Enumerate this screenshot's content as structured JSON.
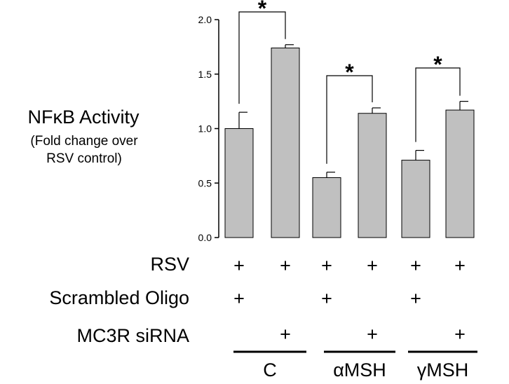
{
  "chart_data": {
    "type": "bar",
    "y_axis_title": "NFκB Activity",
    "y_axis_subtitle": "(Fold change over\nRSV control)",
    "ylim": [
      0,
      2.0
    ],
    "yticks": [
      "0.0",
      "0.5",
      "1.0",
      "1.5",
      "2.0"
    ],
    "ytick_values": [
      0,
      0.5,
      1.0,
      1.5,
      2.0
    ],
    "grid": false,
    "bar_color": "#c0c0c0",
    "values": [
      1.0,
      1.74,
      0.55,
      1.14,
      0.71,
      1.17
    ],
    "errors": [
      0.15,
      0.03,
      0.05,
      0.05,
      0.09,
      0.08
    ],
    "significance": [
      {
        "bars": [
          0,
          1
        ],
        "label": "*"
      },
      {
        "bars": [
          2,
          3
        ],
        "label": "*"
      },
      {
        "bars": [
          4,
          5
        ],
        "label": "*"
      }
    ],
    "condition_rows": [
      {
        "label": "RSV",
        "marks": [
          "+",
          "+",
          "+",
          "+",
          "+",
          "+"
        ]
      },
      {
        "label": "Scrambled Oligo",
        "marks": [
          "+",
          "",
          "+",
          "",
          "+",
          ""
        ]
      },
      {
        "label": "MC3R siRNA",
        "marks": [
          "",
          "+",
          "",
          "+",
          "",
          "+"
        ]
      }
    ],
    "groups": [
      {
        "label": "C",
        "bars": [
          0,
          1
        ]
      },
      {
        "label": "αMSH",
        "bars": [
          2,
          3
        ]
      },
      {
        "label": "γMSH",
        "bars": [
          4,
          5
        ]
      }
    ]
  }
}
